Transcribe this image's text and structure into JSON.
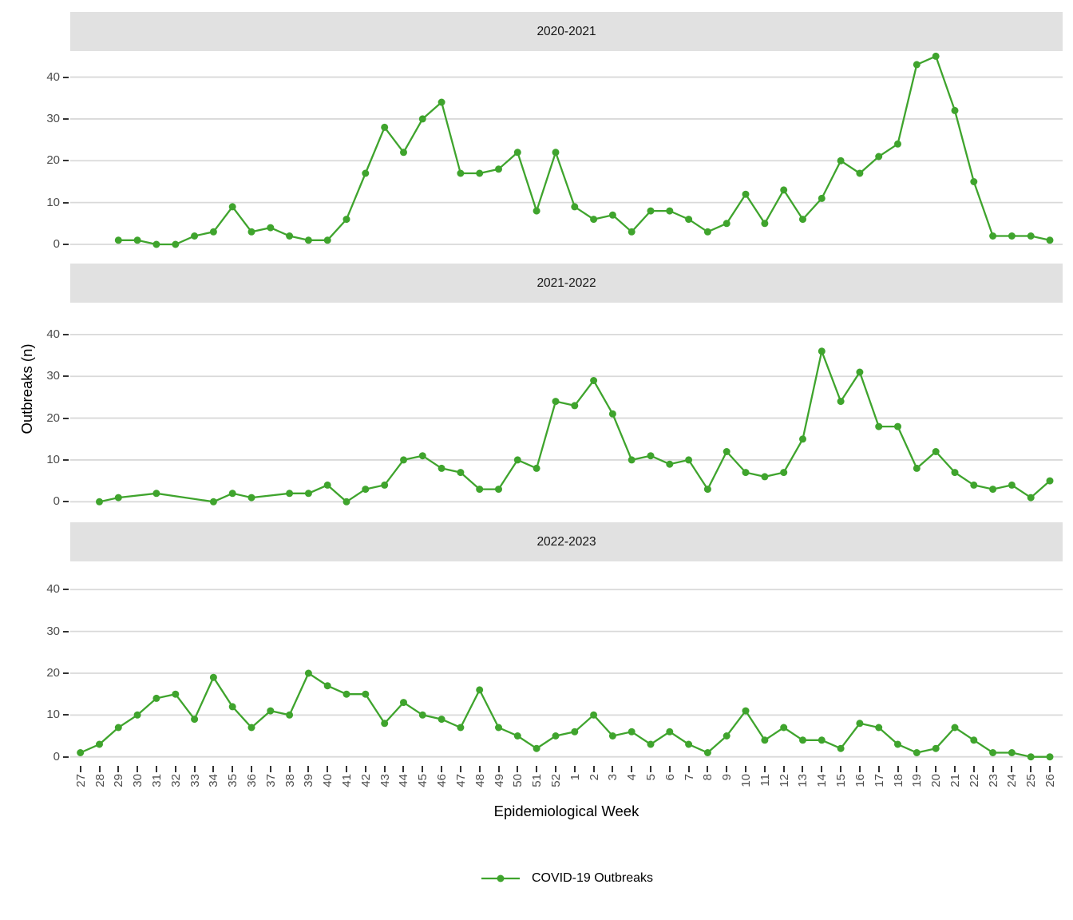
{
  "chart_data": {
    "type": "line",
    "xlabel": "Epidemiological Week",
    "ylabel": "Outbreaks (n)",
    "categories": [
      "27",
      "28",
      "29",
      "30",
      "31",
      "32",
      "33",
      "34",
      "35",
      "36",
      "37",
      "38",
      "39",
      "40",
      "41",
      "42",
      "43",
      "44",
      "45",
      "46",
      "47",
      "48",
      "49",
      "50",
      "51",
      "52",
      "1",
      "2",
      "3",
      "4",
      "5",
      "6",
      "7",
      "8",
      "9",
      "10",
      "11",
      "12",
      "13",
      "14",
      "15",
      "16",
      "17",
      "18",
      "19",
      "20",
      "21",
      "22",
      "23",
      "24",
      "25",
      "26"
    ],
    "yticks": [
      0,
      10,
      20,
      30,
      40
    ],
    "ylim": [
      0,
      46
    ],
    "grid": "major-horizontal",
    "series_color": "#3fa42d",
    "grid_color": "#d9d9d9",
    "strip_fill": "#e1e1e1",
    "axis_text_color": "#4d4d4d",
    "legend": {
      "label": "COVID-19 Outbreaks",
      "position": "bottom"
    },
    "facets": [
      {
        "label": "2020-2021",
        "points": [
          [
            "29",
            1
          ],
          [
            "30",
            1
          ],
          [
            "31",
            0
          ],
          [
            "32",
            0
          ],
          [
            "33",
            2
          ],
          [
            "34",
            3
          ],
          [
            "35",
            9
          ],
          [
            "36",
            3
          ],
          [
            "37",
            4
          ],
          [
            "38",
            2
          ],
          [
            "39",
            1
          ],
          [
            "40",
            1
          ],
          [
            "41",
            6
          ],
          [
            "42",
            17
          ],
          [
            "43",
            28
          ],
          [
            "44",
            22
          ],
          [
            "45",
            30
          ],
          [
            "46",
            34
          ],
          [
            "47",
            17
          ],
          [
            "48",
            17
          ],
          [
            "49",
            18
          ],
          [
            "50",
            22
          ],
          [
            "51",
            8
          ],
          [
            "52",
            22
          ],
          [
            "1",
            9
          ],
          [
            "2",
            6
          ],
          [
            "3",
            7
          ],
          [
            "4",
            3
          ],
          [
            "5",
            8
          ],
          [
            "6",
            8
          ],
          [
            "7",
            6
          ],
          [
            "8",
            3
          ],
          [
            "9",
            5
          ],
          [
            "10",
            12
          ],
          [
            "11",
            5
          ],
          [
            "12",
            13
          ],
          [
            "13",
            6
          ],
          [
            "14",
            11
          ],
          [
            "15",
            20
          ],
          [
            "16",
            17
          ],
          [
            "17",
            21
          ],
          [
            "18",
            24
          ],
          [
            "19",
            43
          ],
          [
            "20",
            45
          ],
          [
            "21",
            32
          ],
          [
            "22",
            15
          ],
          [
            "23",
            2
          ],
          [
            "24",
            2
          ],
          [
            "25",
            2
          ],
          [
            "26",
            1
          ]
        ]
      },
      {
        "label": "2021-2022",
        "points": [
          [
            "28",
            0
          ],
          [
            "29",
            1
          ],
          [
            "31",
            2
          ],
          [
            "34",
            0
          ],
          [
            "35",
            2
          ],
          [
            "36",
            1
          ],
          [
            "38",
            2
          ],
          [
            "39",
            2
          ],
          [
            "40",
            4
          ],
          [
            "41",
            0
          ],
          [
            "42",
            3
          ],
          [
            "43",
            4
          ],
          [
            "44",
            10
          ],
          [
            "45",
            11
          ],
          [
            "46",
            8
          ],
          [
            "47",
            7
          ],
          [
            "48",
            3
          ],
          [
            "49",
            3
          ],
          [
            "50",
            10
          ],
          [
            "51",
            8
          ],
          [
            "52",
            24
          ],
          [
            "1",
            23
          ],
          [
            "2",
            29
          ],
          [
            "3",
            21
          ],
          [
            "4",
            10
          ],
          [
            "5",
            11
          ],
          [
            "6",
            9
          ],
          [
            "7",
            10
          ],
          [
            "8",
            3
          ],
          [
            "9",
            12
          ],
          [
            "10",
            7
          ],
          [
            "11",
            6
          ],
          [
            "12",
            7
          ],
          [
            "13",
            15
          ],
          [
            "14",
            36
          ],
          [
            "15",
            24
          ],
          [
            "16",
            31
          ],
          [
            "17",
            18
          ],
          [
            "18",
            18
          ],
          [
            "19",
            8
          ],
          [
            "20",
            12
          ],
          [
            "21",
            7
          ],
          [
            "22",
            4
          ],
          [
            "23",
            3
          ],
          [
            "24",
            4
          ],
          [
            "25",
            1
          ],
          [
            "26",
            5
          ]
        ]
      },
      {
        "label": "2022-2023",
        "points": [
          [
            "27",
            1
          ],
          [
            "28",
            3
          ],
          [
            "29",
            7
          ],
          [
            "30",
            10
          ],
          [
            "31",
            14
          ],
          [
            "32",
            15
          ],
          [
            "33",
            9
          ],
          [
            "34",
            19
          ],
          [
            "35",
            12
          ],
          [
            "36",
            7
          ],
          [
            "37",
            11
          ],
          [
            "38",
            10
          ],
          [
            "39",
            20
          ],
          [
            "40",
            17
          ],
          [
            "41",
            15
          ],
          [
            "42",
            15
          ],
          [
            "43",
            8
          ],
          [
            "44",
            13
          ],
          [
            "45",
            10
          ],
          [
            "46",
            9
          ],
          [
            "47",
            7
          ],
          [
            "48",
            16
          ],
          [
            "49",
            7
          ],
          [
            "50",
            5
          ],
          [
            "51",
            2
          ],
          [
            "52",
            5
          ],
          [
            "1",
            6
          ],
          [
            "2",
            10
          ],
          [
            "3",
            5
          ],
          [
            "4",
            6
          ],
          [
            "5",
            3
          ],
          [
            "6",
            6
          ],
          [
            "7",
            3
          ],
          [
            "8",
            1
          ],
          [
            "9",
            5
          ],
          [
            "10",
            11
          ],
          [
            "11",
            4
          ],
          [
            "12",
            7
          ],
          [
            "13",
            4
          ],
          [
            "14",
            4
          ],
          [
            "15",
            2
          ],
          [
            "16",
            8
          ],
          [
            "17",
            7
          ],
          [
            "18",
            3
          ],
          [
            "19",
            1
          ],
          [
            "20",
            2
          ],
          [
            "21",
            7
          ],
          [
            "22",
            4
          ],
          [
            "23",
            1
          ],
          [
            "24",
            1
          ],
          [
            "25",
            0
          ],
          [
            "26",
            0
          ]
        ]
      }
    ]
  }
}
